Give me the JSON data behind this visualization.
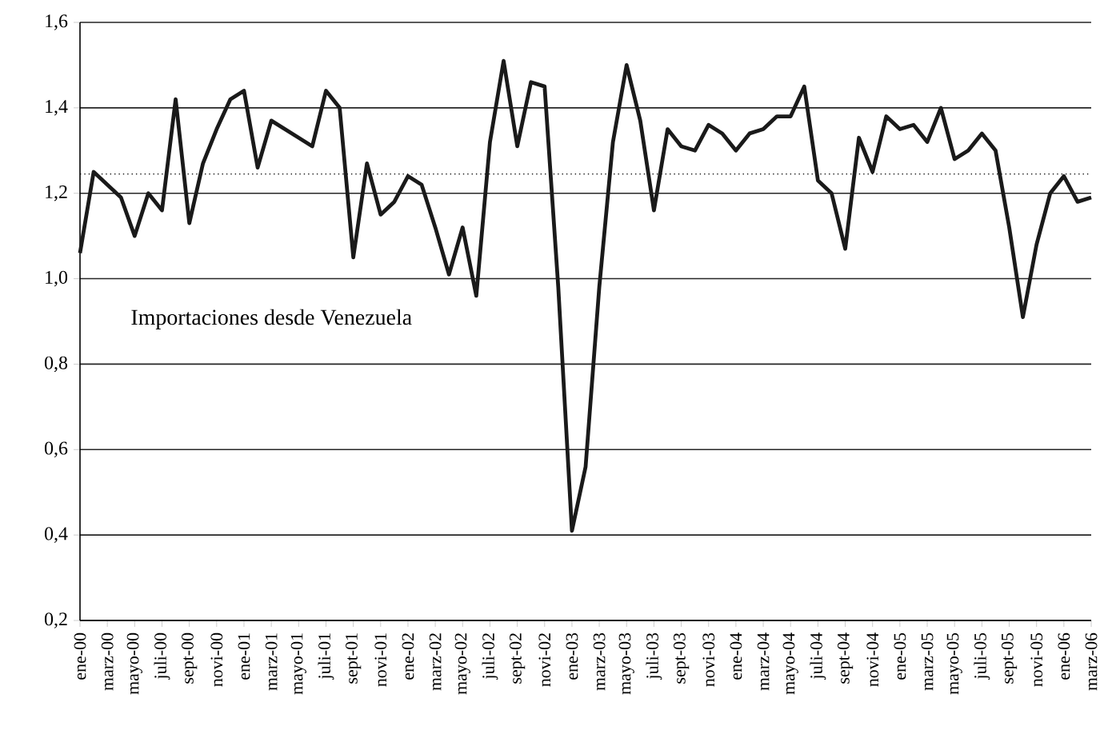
{
  "chart_data": {
    "type": "line",
    "categories": [
      "ene-00",
      null,
      "marz-00",
      null,
      "mayo-00",
      null,
      "juli-00",
      null,
      "sept-00",
      null,
      "novi-00",
      null,
      "ene-01",
      null,
      "marz-01",
      null,
      "mayo-01",
      null,
      "juli-01",
      null,
      "sept-01",
      null,
      "novi-01",
      null,
      "ene-02",
      null,
      "marz-02",
      null,
      "mayo-02",
      null,
      "juli-02",
      null,
      "sept-02",
      null,
      "novi-02",
      null,
      "ene-03",
      null,
      "marz-03",
      null,
      "mayo-03",
      null,
      "juli-03",
      null,
      "sept-03",
      null,
      "novi-03",
      null,
      "ene-04",
      null,
      "marz-04",
      null,
      "mayo-04",
      null,
      "juli-04",
      null,
      "sept-04",
      null,
      "novi-04",
      null,
      "ene-05",
      null,
      "marz-05",
      null,
      "mayo-05",
      null,
      "juli-05",
      null,
      "sept-05",
      null,
      "novi-05",
      null,
      "ene-06",
      null,
      "marz-06"
    ],
    "series": [
      {
        "name": "Importaciones desde Venezuela",
        "color": "#1a1a1a",
        "values": [
          1.06,
          1.25,
          1.22,
          1.19,
          1.1,
          1.2,
          1.16,
          1.42,
          1.13,
          1.27,
          1.35,
          1.42,
          1.44,
          1.26,
          1.37,
          1.35,
          1.33,
          1.31,
          1.44,
          1.4,
          1.05,
          1.27,
          1.15,
          1.18,
          1.24,
          1.22,
          1.12,
          1.01,
          1.12,
          0.96,
          1.32,
          1.51,
          1.31,
          1.46,
          1.45,
          0.98,
          0.41,
          0.56,
          0.98,
          1.32,
          1.5,
          1.37,
          1.16,
          1.35,
          1.31,
          1.3,
          1.36,
          1.34,
          1.3,
          1.34,
          1.35,
          1.38,
          1.38,
          1.45,
          1.23,
          1.2,
          1.07,
          1.33,
          1.25,
          1.38,
          1.35,
          1.36,
          1.32,
          1.4,
          1.28,
          1.3,
          1.34,
          1.3,
          1.12,
          0.91,
          1.08,
          1.2,
          1.24,
          1.18,
          1.19
        ]
      }
    ],
    "ylim": [
      0.2,
      1.6
    ],
    "yticks": [
      {
        "value": 0.2,
        "label": "0,2"
      },
      {
        "value": 0.4,
        "label": "0,4"
      },
      {
        "value": 0.6,
        "label": "0,6"
      },
      {
        "value": 0.8,
        "label": "0,8"
      },
      {
        "value": 1.0,
        "label": "1,0"
      },
      {
        "value": 1.2,
        "label": "1,2"
      },
      {
        "value": 1.4,
        "label": "1,4"
      },
      {
        "value": 1.6,
        "label": "1,6"
      }
    ],
    "grid": "y",
    "ref_lines": [
      {
        "axis": "y",
        "value": 1.245,
        "line_style": "dotted"
      }
    ],
    "legend": false,
    "marker": "none",
    "line_style": "solid"
  }
}
